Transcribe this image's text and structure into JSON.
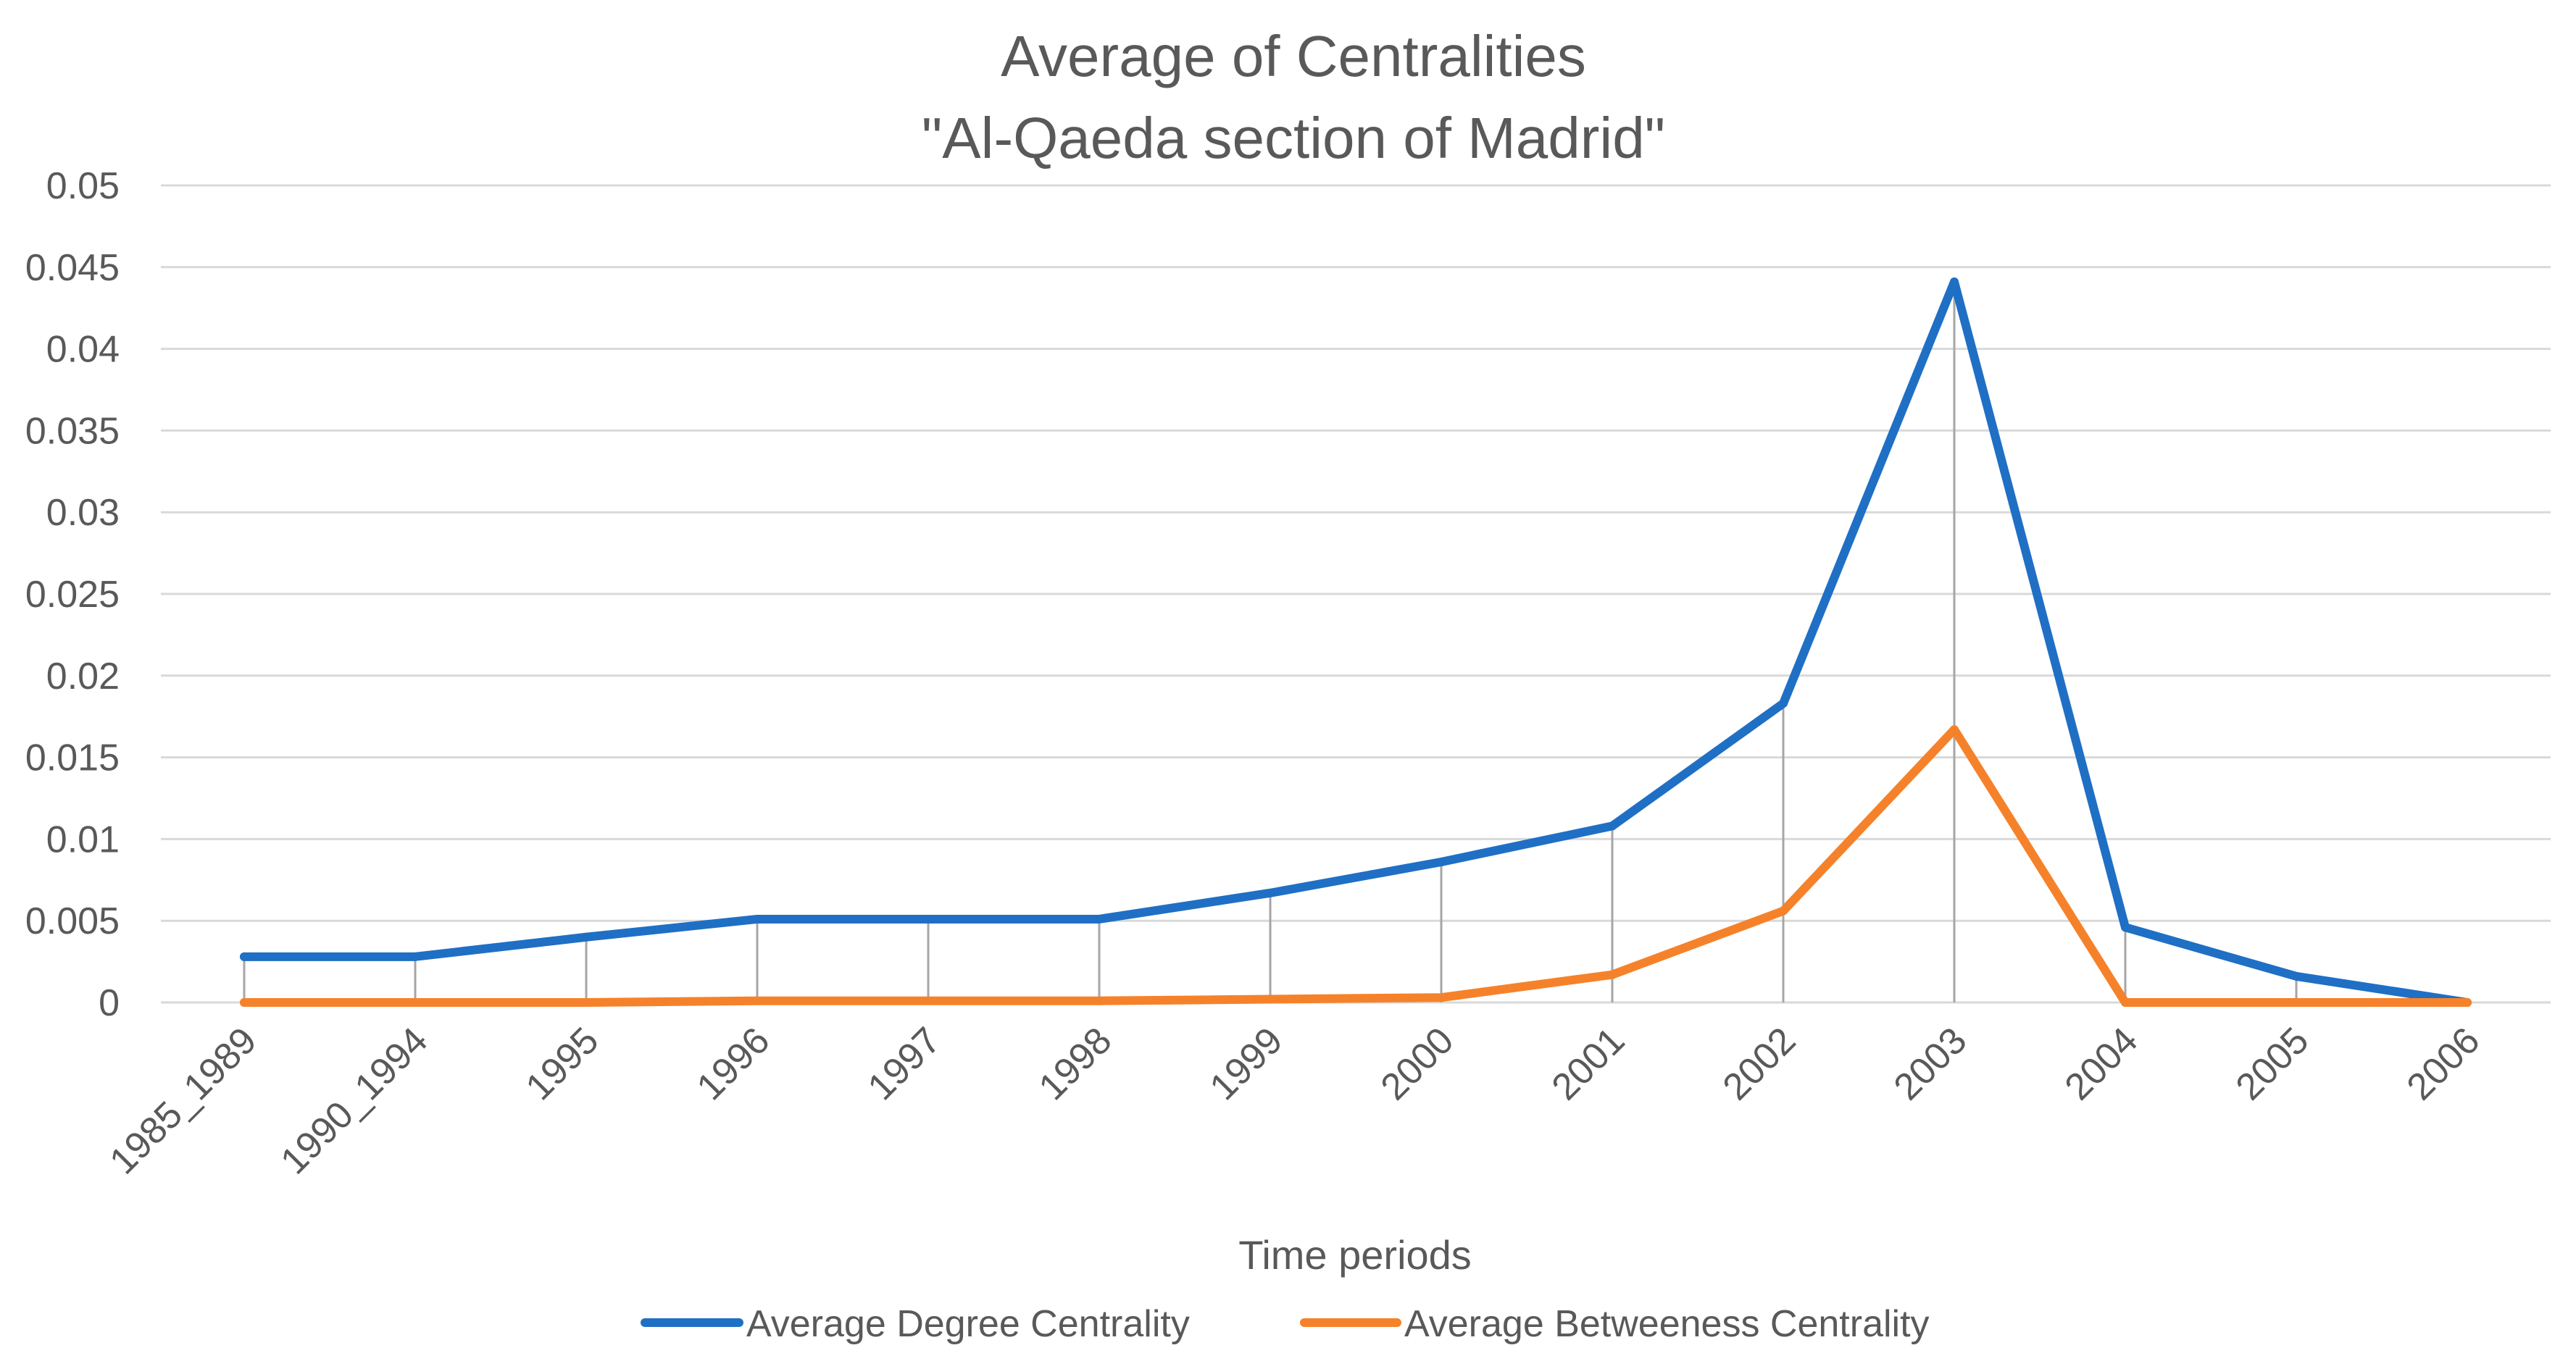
{
  "chart_data": {
    "type": "line",
    "title": [
      "Average of Centralities",
      "\"Al-Qaeda section of Madrid\""
    ],
    "xlabel": "Time periods",
    "ylabel": "",
    "categories": [
      "1985_1989",
      "1990_1994",
      "1995",
      "1996",
      "1997",
      "1998",
      "1999",
      "2000",
      "2001",
      "2002",
      "2003",
      "2004",
      "2005",
      "2006"
    ],
    "ylim": [
      0,
      0.05
    ],
    "yticks": [
      "0",
      "0.005",
      "0.01",
      "0.015",
      "0.02",
      "0.025",
      "0.03",
      "0.035",
      "0.04",
      "0.045",
      "0.05"
    ],
    "grid": true,
    "drop_lines": true,
    "legend_position": "bottom",
    "series": [
      {
        "name": "Average Degree Centrality",
        "color": "#1f6fc5",
        "values": [
          0.0028,
          0.0028,
          0.004,
          0.0051,
          0.0051,
          0.0051,
          0.0067,
          0.0086,
          0.0108,
          0.0183,
          0.0441,
          0.0046,
          0.0016,
          0.0
        ]
      },
      {
        "name": "Average Betweeness Centrality",
        "color": "#f5822a",
        "values": [
          0.0,
          0.0,
          0.0,
          0.0001,
          0.0001,
          0.0001,
          0.0002,
          0.0003,
          0.0017,
          0.0056,
          0.0167,
          0.0,
          0.0,
          0.0
        ]
      }
    ]
  }
}
